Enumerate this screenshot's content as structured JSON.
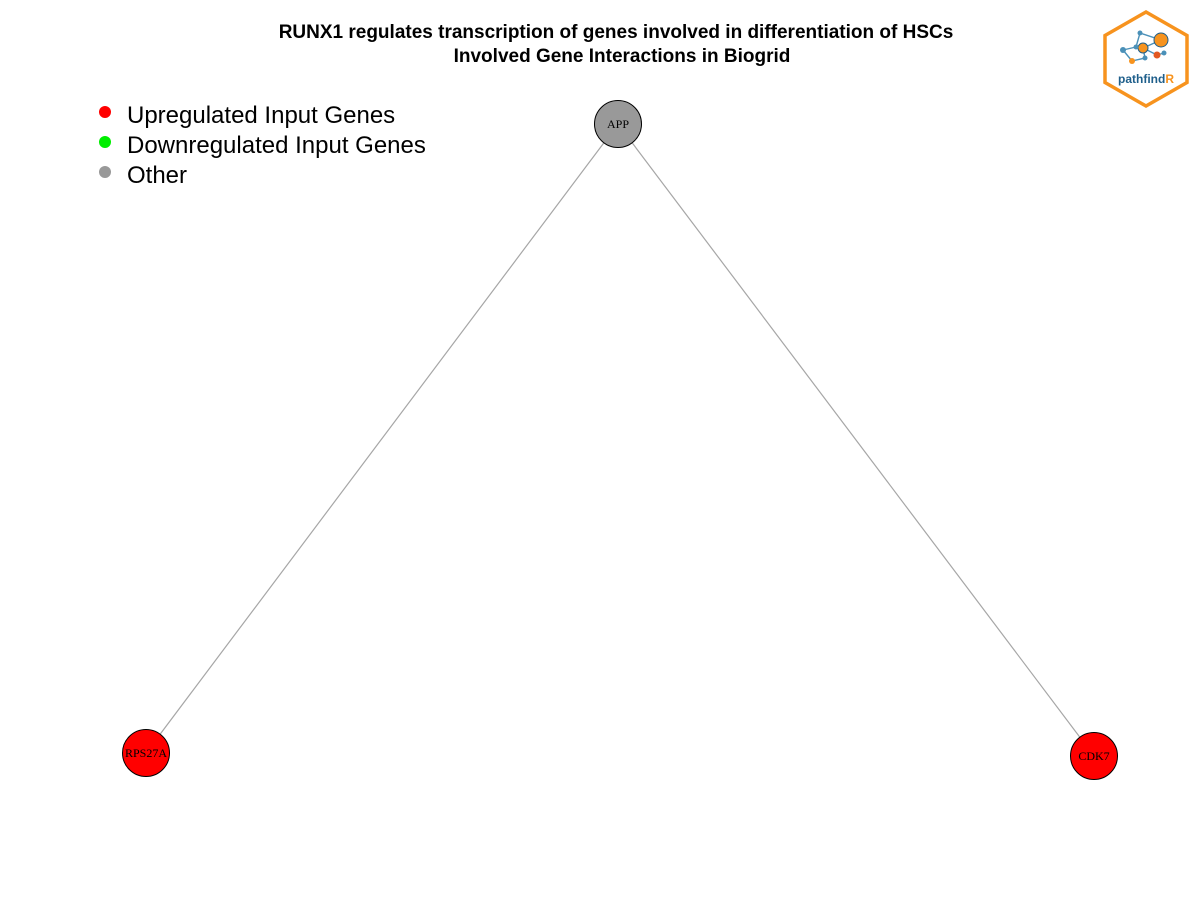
{
  "title": {
    "line1": "RUNX1 regulates transcription of genes involved in differentiation of HSCs",
    "line2": "Involved Gene Interactions in Biogrid"
  },
  "legend": [
    {
      "label": "Upregulated Input Genes",
      "color": "#ff0000"
    },
    {
      "label": "Downregulated Input Genes",
      "color": "#00ee00"
    },
    {
      "label": "Other",
      "color": "#999999"
    }
  ],
  "nodes": [
    {
      "id": "APP",
      "label": "APP",
      "category": "Other",
      "color": "#999999"
    },
    {
      "id": "RPS27A",
      "label": "RPS27A",
      "category": "Upregulated Input Genes",
      "color": "#ff0000"
    },
    {
      "id": "CDK7",
      "label": "CDK7",
      "category": "Upregulated Input Genes",
      "color": "#ff0000"
    }
  ],
  "edges": [
    {
      "source": "APP",
      "target": "RPS27A"
    },
    {
      "source": "APP",
      "target": "CDK7"
    }
  ],
  "logo": {
    "text_main": "pathfind",
    "text_accent": "R",
    "border_color": "#f7931e",
    "text_color": "#1f5f8b",
    "accent_color": "#f7931e"
  }
}
